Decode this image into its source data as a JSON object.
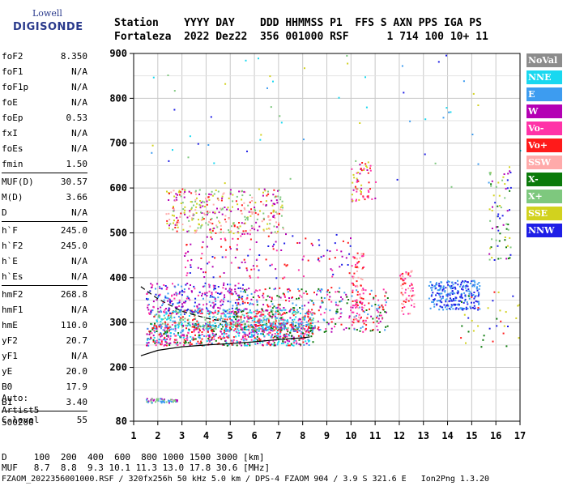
{
  "logo": {
    "line1": "Lowell",
    "line2": "DIGISONDE"
  },
  "header": {
    "line1": "Station    YYYY DAY    DDD HHMMSS P1  FFS S AXN PPS IGA PS",
    "line2": "Fortaleza  2022 Dez22  356 001000 RSF      1 714 100 10+ 11"
  },
  "params_groups": [
    [
      {
        "k": "foF2",
        "v": "8.350"
      },
      {
        "k": "foF1",
        "v": "N/A"
      },
      {
        "k": "foF1p",
        "v": "N/A"
      },
      {
        "k": "foE",
        "v": "N/A"
      },
      {
        "k": "foEp",
        "v": "0.53"
      },
      {
        "k": "fxI",
        "v": "N/A"
      },
      {
        "k": "foEs",
        "v": "N/A"
      },
      {
        "k": "fmin",
        "v": "1.50"
      }
    ],
    [
      {
        "k": "MUF(D)",
        "v": "30.57"
      },
      {
        "k": "M(D)",
        "v": "3.66"
      },
      {
        "k": "D",
        "v": "N/A"
      }
    ],
    [
      {
        "k": "h`F",
        "v": "245.0"
      },
      {
        "k": "h`F2",
        "v": "245.0"
      },
      {
        "k": "h`E",
        "v": "N/A"
      },
      {
        "k": "h`Es",
        "v": "N/A"
      }
    ],
    [
      {
        "k": "hmF2",
        "v": "268.8"
      },
      {
        "k": "hmF1",
        "v": "N/A"
      },
      {
        "k": "hmE",
        "v": "110.0"
      },
      {
        "k": "yF2",
        "v": "20.7"
      },
      {
        "k": "yF1",
        "v": "N/A"
      },
      {
        "k": "yE",
        "v": "20.0"
      },
      {
        "k": "B0",
        "v": "17.9"
      },
      {
        "k": "B1",
        "v": "3.40"
      }
    ],
    [
      {
        "k": "C-level",
        "v": "55"
      }
    ]
  ],
  "auto": {
    "line1": "Auto:",
    "line2": "Artist5",
    "line3": "500200"
  },
  "legend": [
    {
      "label": "NoVal",
      "color": "#8c8c8c"
    },
    {
      "label": "NNE",
      "color": "#19d8f0"
    },
    {
      "label": "E",
      "color": "#3d9cf0"
    },
    {
      "label": "W",
      "color": "#b400b4"
    },
    {
      "label": "Vo-",
      "color": "#ff33a8"
    },
    {
      "label": "Vo+",
      "color": "#ff1a1a"
    },
    {
      "label": "SSW",
      "color": "#ffaaaa"
    },
    {
      "label": "X-",
      "color": "#0a7a0a"
    },
    {
      "label": "X+",
      "color": "#7ec87e"
    },
    {
      "label": "SSE",
      "color": "#d2d21e"
    },
    {
      "label": "NNW",
      "color": "#1e1ee6"
    }
  ],
  "bottom": {
    "line1": "D     100  200  400  600  800 1000 1500 3000 [km]",
    "line2": "MUF   8.7  8.8  9.3 10.1 11.3 13.0 17.8 30.6 [MHz]"
  },
  "footer": "FZAOM_2022356001000.RSF / 320fx256h 50 kHz 5.0 km / DPS-4 FZAOM 904 / 3.9 S 321.6 E   Ion2Png 1.3.20",
  "chart_data": {
    "type": "scatter",
    "xlim": [
      1,
      17
    ],
    "ylim": [
      80,
      900
    ],
    "x_ticks": [
      "1",
      "2",
      "3",
      "4",
      "5",
      "6",
      "7",
      "8",
      "9",
      "10",
      "11",
      "12",
      "13",
      "14",
      "15",
      "16",
      "17"
    ],
    "y_ticks": [
      {
        "value": 80,
        "label": "80"
      },
      {
        "value": 200,
        "label": "200"
      },
      {
        "value": 300,
        "label": "300"
      },
      {
        "value": 400,
        "label": "400"
      },
      {
        "value": 500,
        "label": "500"
      },
      {
        "value": 600,
        "label": "600"
      },
      {
        "value": 700,
        "label": "700"
      },
      {
        "value": 800,
        "label": "800"
      },
      {
        "value": 900,
        "label": "900"
      }
    ],
    "trace_line": [
      [
        1.3,
        226
      ],
      [
        2,
        238
      ],
      [
        3,
        246
      ],
      [
        4,
        250
      ],
      [
        5,
        253
      ],
      [
        6,
        257
      ],
      [
        7,
        262
      ],
      [
        8,
        266
      ],
      [
        8.3,
        268
      ]
    ],
    "trace_dashed": [
      [
        1.3,
        380
      ],
      [
        2,
        353
      ],
      [
        3,
        325
      ],
      [
        4,
        310
      ],
      [
        5,
        300
      ]
    ],
    "clusters": [
      {
        "x": [
          1.5,
          8.4
        ],
        "y": [
          250,
          300
        ],
        "n": 700,
        "colors": [
          "#ff1a1a",
          "#b400b4",
          "#3d9cf0",
          "#19d8f0",
          "#0a7a0a",
          "#ff33a8"
        ]
      },
      {
        "x": [
          1.8,
          8.5
        ],
        "y": [
          285,
          330
        ],
        "n": 500,
        "colors": [
          "#3d9cf0",
          "#19d8f0",
          "#ff1a1a",
          "#7ec87e"
        ]
      },
      {
        "x": [
          1.5,
          5.5
        ],
        "y": [
          320,
          390
        ],
        "n": 260,
        "colors": [
          "#b400b4",
          "#ff33a8",
          "#3d9cf0",
          "#1e1ee6"
        ]
      },
      {
        "x": [
          5,
          11.5
        ],
        "y": [
          280,
          380
        ],
        "n": 420,
        "colors": [
          "#ff1a1a",
          "#3d9cf0",
          "#b400b4",
          "#ff33a8",
          "#0a7a0a"
        ]
      },
      {
        "x": [
          2.3,
          7.2
        ],
        "y": [
          500,
          600
        ],
        "n": 360,
        "colors": [
          "#d2d21e",
          "#ffaaaa",
          "#ff1a1a",
          "#b400b4",
          "#7ec87e"
        ]
      },
      {
        "x": [
          10,
          11
        ],
        "y": [
          570,
          660
        ],
        "n": 60,
        "colors": [
          "#ff1a1a",
          "#ff33a8",
          "#d2d21e",
          "#b400b4"
        ]
      },
      {
        "x": [
          10,
          10.5
        ],
        "y": [
          300,
          460
        ],
        "n": 80,
        "colors": [
          "#ff1a1a",
          "#ff33a8",
          "#ffaaaa"
        ]
      },
      {
        "x": [
          12,
          12.6
        ],
        "y": [
          320,
          420
        ],
        "n": 60,
        "colors": [
          "#ffaaaa",
          "#ff33a8",
          "#ff1a1a"
        ]
      },
      {
        "x": [
          13.2,
          15.3
        ],
        "y": [
          330,
          395
        ],
        "n": 240,
        "colors": [
          "#1e1ee6",
          "#3d9cf0"
        ]
      },
      {
        "x": [
          1.5,
          2.8
        ],
        "y": [
          122,
          132
        ],
        "n": 50,
        "colors": [
          "#b400b4",
          "#3d9cf0",
          "#7ec87e"
        ]
      },
      {
        "x": [
          15.7,
          16.6
        ],
        "y": [
          440,
          640
        ],
        "n": 70,
        "colors": [
          "#0a7a0a",
          "#7ec87e",
          "#1e1ee6",
          "#b400b4",
          "#d2d21e"
        ]
      },
      {
        "x": [
          3,
          10
        ],
        "y": [
          400,
          500
        ],
        "n": 140,
        "colors": [
          "#b400b4",
          "#1e1ee6",
          "#ff33a8",
          "#ff1a1a"
        ]
      },
      {
        "x": [
          1.5,
          17
        ],
        "y": [
          600,
          900
        ],
        "n": 60,
        "colors": [
          "#3d9cf0",
          "#d2d21e",
          "#1e1ee6",
          "#7ec87e",
          "#19d8f0"
        ]
      },
      {
        "x": [
          14.5,
          17
        ],
        "y": [
          240,
          390
        ],
        "n": 40,
        "colors": [
          "#ff1a1a",
          "#0a7a0a",
          "#1e1ee6",
          "#d2d21e"
        ]
      }
    ]
  }
}
